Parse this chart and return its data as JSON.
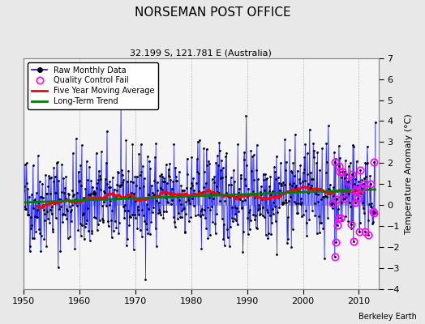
{
  "title": "NORSEMAN POST OFFICE",
  "subtitle": "32.199 S, 121.781 E (Australia)",
  "credit": "Berkeley Earth",
  "ylabel": "Temperature Anomaly (°C)",
  "xlim": [
    1950,
    2013.5
  ],
  "ylim": [
    -4,
    7
  ],
  "yticks": [
    -4,
    -3,
    -2,
    -1,
    0,
    1,
    2,
    3,
    4,
    5,
    6,
    7
  ],
  "xticks": [
    1950,
    1960,
    1970,
    1980,
    1990,
    2000,
    2010
  ],
  "bg_color": "#e8e8e8",
  "plot_bg": "#f5f5f5",
  "seed": 42
}
